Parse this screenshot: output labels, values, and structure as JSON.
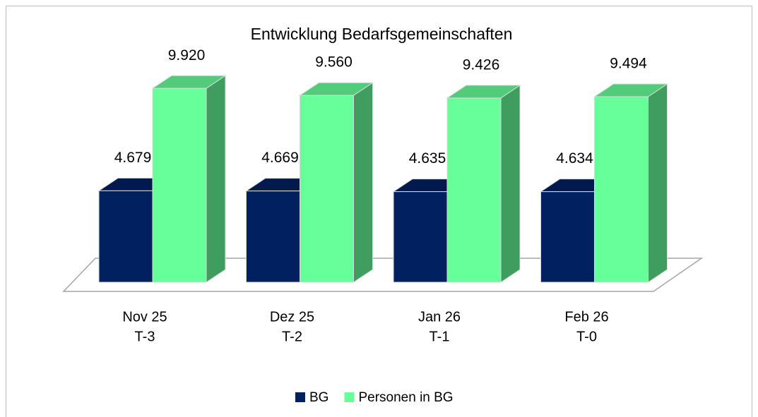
{
  "chart_data": {
    "type": "bar3d",
    "title": "Entwicklung Bedarfsgemeinschaften",
    "categories": [
      [
        "Nov 25",
        "T-3"
      ],
      [
        "Dez 25",
        "T-2"
      ],
      [
        "Jan 26",
        "T-1"
      ],
      [
        "Feb 26",
        "T-0"
      ]
    ],
    "series": [
      {
        "name": "BG",
        "color": "#002060",
        "values": [
          4679,
          4669,
          4635,
          4634
        ],
        "value_labels": [
          "4.679",
          "4.669",
          "4.635",
          "4.634"
        ]
      },
      {
        "name": "Personen in BG",
        "color": "#66ff99",
        "values": [
          9920,
          9560,
          9426,
          9494
        ],
        "value_labels": [
          "9.920",
          "9.560",
          "9.426",
          "9.494"
        ]
      }
    ],
    "legend": "bottom"
  }
}
